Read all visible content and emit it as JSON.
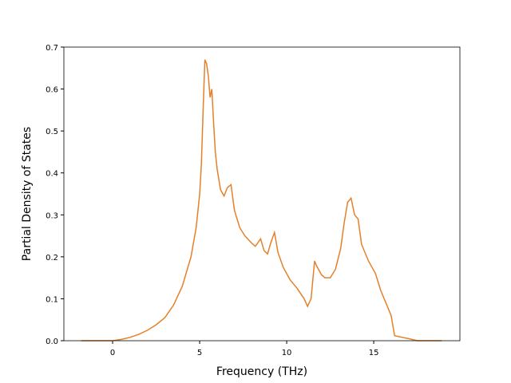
{
  "chart_data": {
    "type": "line",
    "xlabel": "Frequency (THz)",
    "ylabel": "Partial Density of States",
    "xlim": [
      -2.8,
      19.95
    ],
    "ylim": [
      0,
      0.7
    ],
    "xticks": [
      0,
      5,
      10,
      15
    ],
    "yticks": [
      {
        "value": 0,
        "label": "0.0"
      },
      {
        "value": 0.1,
        "label": "0.1"
      },
      {
        "value": 0.2,
        "label": "0.2"
      },
      {
        "value": 0.3,
        "label": "0.3"
      },
      {
        "value": 0.4,
        "label": "0.4"
      },
      {
        "value": 0.5,
        "label": "0.5"
      },
      {
        "value": 0.6,
        "label": "0.6"
      },
      {
        "value": 0.7,
        "label": "0.7"
      }
    ],
    "x": [
      -1.8,
      0,
      0.5,
      1,
      1.5,
      2,
      2.5,
      3,
      3.5,
      4,
      4.5,
      4.8,
      5,
      5.1,
      5.2,
      5.3,
      5.4,
      5.5,
      5.6,
      5.7,
      5.8,
      5.9,
      6.0,
      6.2,
      6.4,
      6.6,
      6.8,
      7.0,
      7.3,
      7.6,
      8.0,
      8.2,
      8.5,
      8.7,
      8.9,
      9.1,
      9.3,
      9.5,
      9.8,
      10.2,
      10.6,
      11.0,
      11.2,
      11.4,
      11.6,
      11.7,
      12.0,
      12.2,
      12.5,
      12.8,
      13.1,
      13.3,
      13.5,
      13.7,
      13.9,
      14.1,
      14.3,
      14.7,
      15.1,
      15.4,
      15.8,
      16.0,
      16.2,
      17.0,
      17.5,
      18.9
    ],
    "series": [
      {
        "color": "#e5802a",
        "values": [
          0,
          0,
          0.003,
          0.008,
          0.015,
          0.025,
          0.038,
          0.055,
          0.085,
          0.13,
          0.2,
          0.27,
          0.35,
          0.42,
          0.55,
          0.67,
          0.66,
          0.63,
          0.58,
          0.6,
          0.52,
          0.45,
          0.41,
          0.36,
          0.345,
          0.365,
          0.372,
          0.31,
          0.27,
          0.25,
          0.232,
          0.225,
          0.243,
          0.215,
          0.207,
          0.235,
          0.258,
          0.21,
          0.175,
          0.145,
          0.125,
          0.1,
          0.082,
          0.1,
          0.19,
          0.18,
          0.157,
          0.15,
          0.15,
          0.17,
          0.22,
          0.28,
          0.33,
          0.34,
          0.3,
          0.29,
          0.23,
          0.19,
          0.16,
          0.12,
          0.08,
          0.06,
          0.012,
          0.005,
          0,
          0
        ]
      }
    ]
  }
}
